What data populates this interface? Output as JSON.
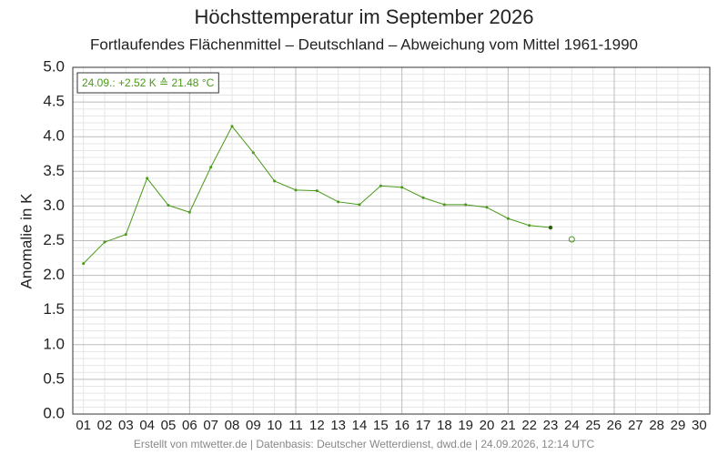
{
  "chart_data": {
    "type": "line",
    "title": "Höchsttemperatur im September 2026",
    "subtitle": "Fortlaufendes Flächenmittel – Deutschland – Abweichung vom Mittel 1961-1990",
    "y_label": "Anomalie in K",
    "annotation": "24.09.: +2.52 K ≙ 21.48 °C",
    "footer": "Erstellt von mtwetter.de | Datenbasis: Deutscher Wetterdienst, dwd.de | 24.09.2026, 12:14 UTC",
    "categories": [
      "01",
      "02",
      "03",
      "04",
      "05",
      "06",
      "07",
      "08",
      "09",
      "10",
      "11",
      "12",
      "13",
      "14",
      "15",
      "16",
      "17",
      "18",
      "19",
      "20",
      "21",
      "22",
      "23",
      "24",
      "25",
      "26",
      "27",
      "28",
      "29",
      "30"
    ],
    "series": [
      {
        "color": "#4a9a1a",
        "values": [
          2.17,
          2.48,
          2.59,
          3.4,
          3.01,
          2.91,
          3.56,
          4.15,
          3.77,
          3.36,
          3.23,
          3.22,
          3.06,
          3.02,
          3.29,
          3.27,
          3.12,
          3.02,
          3.02,
          2.98,
          2.82,
          2.72,
          2.69,
          null,
          null,
          null,
          null,
          null,
          null,
          null
        ]
      },
      {
        "color": "#4a9a1a",
        "values": [
          null,
          null,
          null,
          null,
          null,
          null,
          null,
          null,
          null,
          null,
          null,
          null,
          null,
          null,
          null,
          null,
          null,
          null,
          null,
          null,
          null,
          null,
          null,
          2.52,
          null,
          null,
          null,
          null,
          null,
          null
        ]
      }
    ],
    "ylim": [
      0,
      5
    ],
    "yticks": [
      {
        "value": 0,
        "label": "0.0"
      },
      0.5,
      {
        "value": 1,
        "label": "1.0"
      },
      1.5,
      {
        "value": 2,
        "label": "2.0"
      },
      2.5,
      {
        "value": 3,
        "label": "3.0"
      },
      3.5,
      {
        "value": 4,
        "label": "4.0"
      },
      4.5,
      {
        "value": 5,
        "label": "5.0"
      }
    ],
    "grid": true
  }
}
